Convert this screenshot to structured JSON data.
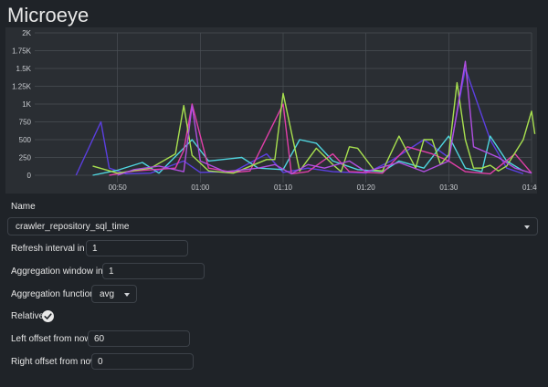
{
  "app": {
    "title": "Microeye"
  },
  "form": {
    "name_label": "Name",
    "name_value": "crawler_repository_sql_time",
    "refresh_label": "Refresh interval in s",
    "refresh_value": "1",
    "aggregation_window_label": "Aggregation window in s",
    "aggregation_window_value": "1",
    "aggregation_function_label": "Aggregation function",
    "aggregation_function_value": "avg",
    "relative_label": "Relative",
    "relative_checked": true,
    "left_offset_label": "Left offset from now",
    "left_offset_value": "60",
    "right_offset_label": "Right offset from now",
    "right_offset_value": "0"
  },
  "icons": {
    "caret": "chevron-down-icon",
    "check": "check-icon"
  },
  "colors": {
    "background": "#1f2328",
    "chart_background": "#2a2e33",
    "series": [
      "#5b3fe0",
      "#4fd6e0",
      "#e03fa8",
      "#a8e04f",
      "#b04fe0"
    ]
  },
  "chart_data": {
    "type": "line",
    "xlim": [
      0,
      60
    ],
    "ylim": [
      0,
      2000
    ],
    "x_ticks": [
      {
        "value": 10,
        "label": "00:50"
      },
      {
        "value": 20,
        "label": "01:00"
      },
      {
        "value": 30,
        "label": "01:10"
      },
      {
        "value": 40,
        "label": "01:20"
      },
      {
        "value": 50,
        "label": "01:30"
      },
      {
        "value": 60,
        "label": "01:40"
      }
    ],
    "y_ticks": [
      {
        "value": 0,
        "label": "0"
      },
      {
        "value": 250,
        "label": "250"
      },
      {
        "value": 500,
        "label": "500"
      },
      {
        "value": 750,
        "label": "750"
      },
      {
        "value": 1000,
        "label": "1K"
      },
      {
        "value": 1250,
        "label": "1.25K"
      },
      {
        "value": 1500,
        "label": "1.5K"
      },
      {
        "value": 1750,
        "label": "1.75K"
      },
      {
        "value": 2000,
        "label": "2K"
      }
    ],
    "grid": true,
    "series": [
      {
        "points": [
          [
            5,
            0
          ],
          [
            8,
            750
          ],
          [
            9,
            100
          ],
          [
            11,
            20
          ],
          [
            14,
            30
          ],
          [
            18,
            200
          ],
          [
            20,
            40
          ],
          [
            24,
            50
          ],
          [
            28,
            300
          ],
          [
            30,
            40
          ],
          [
            33,
            100
          ],
          [
            36,
            50
          ],
          [
            40,
            30
          ],
          [
            43,
            200
          ],
          [
            47,
            500
          ],
          [
            50,
            250
          ],
          [
            52,
            1500
          ],
          [
            55,
            500
          ],
          [
            57,
            100
          ],
          [
            59,
            20
          ]
        ]
      },
      {
        "points": [
          [
            7,
            0
          ],
          [
            10,
            70
          ],
          [
            13,
            180
          ],
          [
            15,
            30
          ],
          [
            19,
            500
          ],
          [
            21,
            200
          ],
          [
            25,
            250
          ],
          [
            27,
            100
          ],
          [
            30,
            80
          ],
          [
            32,
            500
          ],
          [
            34,
            450
          ],
          [
            36,
            200
          ],
          [
            39,
            80
          ],
          [
            42,
            50
          ],
          [
            44,
            200
          ],
          [
            47,
            100
          ],
          [
            50,
            550
          ],
          [
            52,
            100
          ],
          [
            54,
            50
          ],
          [
            55,
            550
          ],
          [
            57,
            200
          ],
          [
            59,
            60
          ]
        ]
      },
      {
        "points": [
          [
            9,
            0
          ],
          [
            12,
            60
          ],
          [
            17,
            100
          ],
          [
            18,
            350
          ],
          [
            19,
            1000
          ],
          [
            21,
            100
          ],
          [
            24,
            40
          ],
          [
            26,
            60
          ],
          [
            30,
            1000
          ],
          [
            31,
            20
          ],
          [
            33,
            50
          ],
          [
            36,
            300
          ],
          [
            38,
            50
          ],
          [
            42,
            30
          ],
          [
            45,
            400
          ],
          [
            48,
            300
          ],
          [
            50,
            200
          ],
          [
            52,
            50
          ],
          [
            55,
            20
          ],
          [
            58,
            300
          ],
          [
            60,
            30
          ]
        ]
      },
      {
        "points": [
          [
            7,
            130
          ],
          [
            10,
            30
          ],
          [
            14,
            100
          ],
          [
            17,
            300
          ],
          [
            18,
            980
          ],
          [
            19,
            280
          ],
          [
            21,
            60
          ],
          [
            24,
            30
          ],
          [
            28,
            220
          ],
          [
            29,
            220
          ],
          [
            30,
            1150
          ],
          [
            32,
            60
          ],
          [
            34,
            380
          ],
          [
            36,
            150
          ],
          [
            37,
            50
          ],
          [
            38,
            400
          ],
          [
            39,
            380
          ],
          [
            41,
            70
          ],
          [
            42,
            60
          ],
          [
            44,
            550
          ],
          [
            46,
            100
          ],
          [
            47,
            500
          ],
          [
            48,
            500
          ],
          [
            49,
            150
          ],
          [
            50,
            290
          ],
          [
            51,
            1300
          ],
          [
            52,
            500
          ],
          [
            53,
            100
          ],
          [
            54,
            100
          ],
          [
            55,
            140
          ],
          [
            56,
            60
          ],
          [
            57,
            130
          ],
          [
            59,
            500
          ],
          [
            60,
            900
          ],
          [
            61,
            580
          ]
        ]
      },
      {
        "points": [
          [
            10,
            0
          ],
          [
            12,
            80
          ],
          [
            15,
            130
          ],
          [
            18,
            50
          ],
          [
            19,
            980
          ],
          [
            20,
            200
          ],
          [
            23,
            50
          ],
          [
            27,
            100
          ],
          [
            29,
            150
          ],
          [
            31,
            20
          ],
          [
            33,
            150
          ],
          [
            35,
            100
          ],
          [
            38,
            200
          ],
          [
            40,
            50
          ],
          [
            44,
            180
          ],
          [
            47,
            50
          ],
          [
            50,
            200
          ],
          [
            52,
            1600
          ],
          [
            53,
            400
          ],
          [
            56,
            250
          ],
          [
            58,
            100
          ],
          [
            60,
            30
          ]
        ]
      }
    ]
  }
}
